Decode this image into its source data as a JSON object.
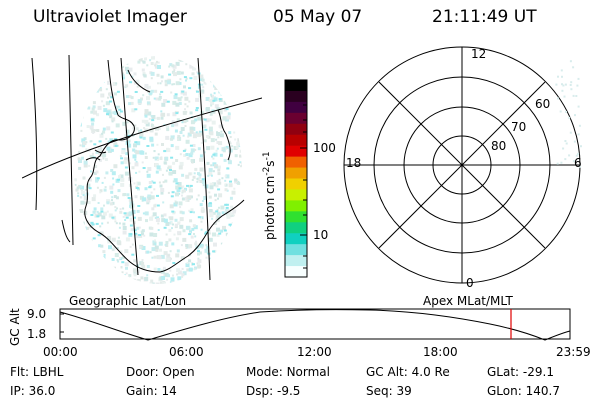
{
  "header": {
    "title": "Ultraviolet Imager",
    "date": "05 May 07",
    "time": "21:11:49 UT"
  },
  "geo_panel": {
    "label": "Geographic Lat/Lon"
  },
  "polar_panel": {
    "label": "Apex MLat/MLT",
    "mlt_labels": {
      "top": "12",
      "left": "18",
      "right": "6",
      "bottom": "0"
    },
    "lat_labels": [
      "60",
      "70",
      "80"
    ]
  },
  "colorbar": {
    "unit_label": "photon cm",
    "unit_exp1": "-2",
    "unit_s": "s",
    "unit_exp2": "-1",
    "ticks": [
      "100",
      "10"
    ],
    "colors": [
      "#000000",
      "#2a0020",
      "#400040",
      "#6a0030",
      "#900010",
      "#b80000",
      "#e00000",
      "#f06000",
      "#f0a000",
      "#f0d000",
      "#c8f000",
      "#80f000",
      "#30e030",
      "#10d080",
      "#10d0c0",
      "#70e0e0",
      "#c0f0f0",
      "#f8ffff"
    ]
  },
  "alt_panel": {
    "ylabel": "GC Alt",
    "yticks": [
      "9.0",
      "1.8"
    ],
    "xticks": [
      "00:00",
      "06:00",
      "12:00",
      "18:00",
      "23:59"
    ],
    "marker_color": "#e00000"
  },
  "info": {
    "row1": [
      {
        "key": "Flt:",
        "value": "LBHL"
      },
      {
        "key": "Door:",
        "value": "Open"
      },
      {
        "key": "Mode:",
        "value": "Normal"
      },
      {
        "key": "GC Alt:",
        "value": "4.0 Re"
      },
      {
        "key": "GLat:",
        "value": "-29.1"
      }
    ],
    "row2": [
      {
        "key": "IP:",
        "value": "36.0"
      },
      {
        "key": "Gain:",
        "value": "14"
      },
      {
        "key": "Dsp:",
        "value": "-9.5"
      },
      {
        "key": "Seq:",
        "value": "39"
      },
      {
        "key": "GLon:",
        "value": "140.7"
      }
    ]
  }
}
